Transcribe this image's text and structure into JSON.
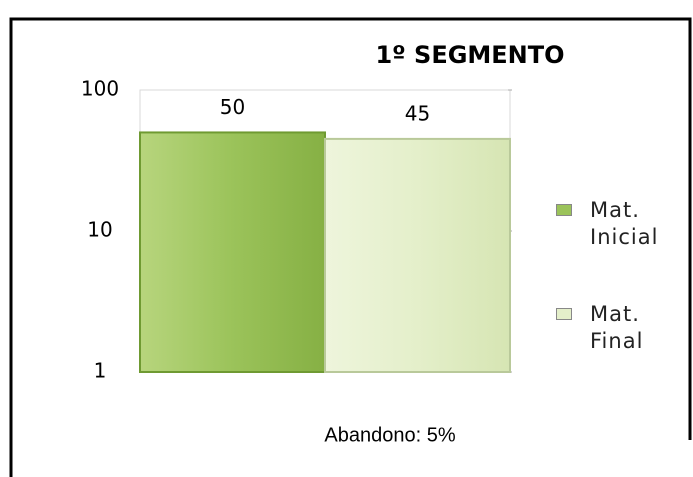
{
  "chart_data": {
    "type": "bar",
    "title": "1º SEGMENTO",
    "categories": [
      null
    ],
    "series": [
      {
        "name": "Mat. Inicial",
        "color": "#9bc35a",
        "values": [
          50
        ]
      },
      {
        "name": "Mat. Final",
        "color": "#e4efca",
        "values": [
          45
        ]
      }
    ],
    "ylim": [
      1,
      100
    ],
    "yticks": [
      1,
      10,
      100
    ],
    "log_scale": true,
    "grid": false,
    "legend": "right",
    "annotations": [
      "Abandono: 5%"
    ]
  }
}
